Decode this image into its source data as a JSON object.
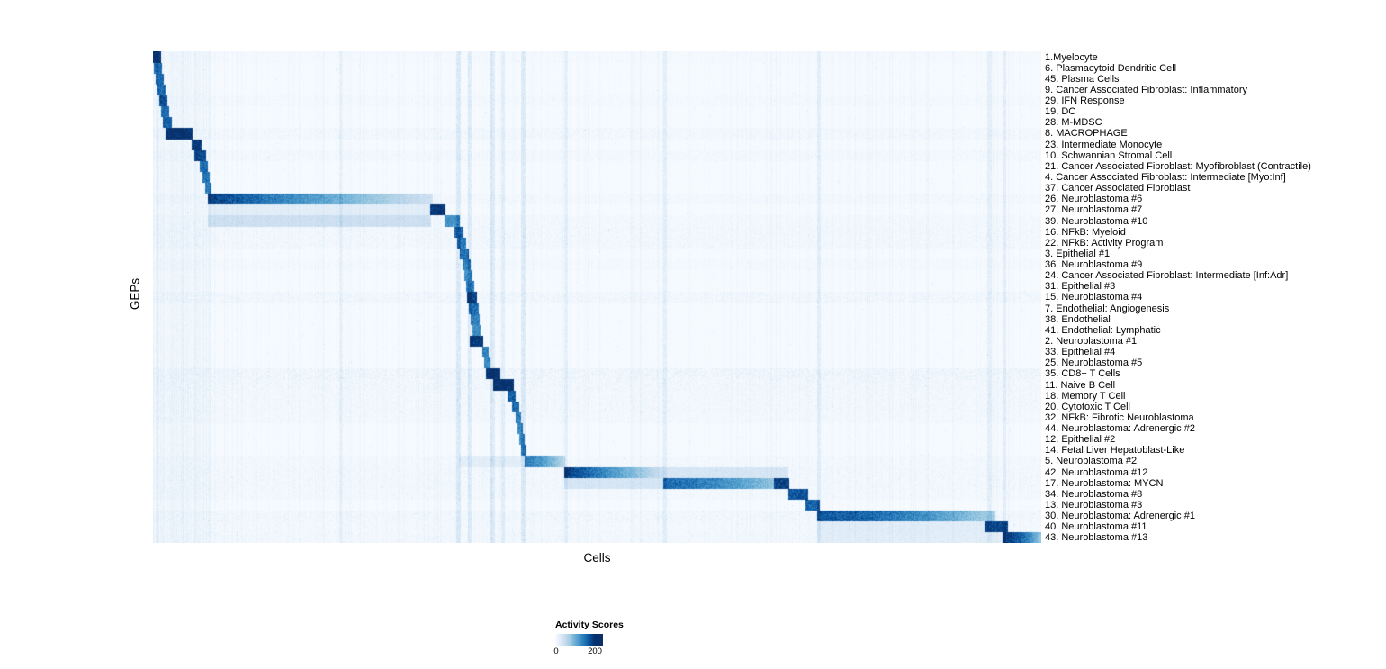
{
  "chart_data": {
    "type": "heatmap",
    "xlabel": "Cells",
    "ylabel": "GEPs",
    "legend": {
      "title": "Activity Scores",
      "min_label": "0",
      "max_label": "200",
      "min": 0,
      "max": 200
    },
    "colorscale": {
      "name": "Blues",
      "min": 0,
      "max": 200,
      "stops": [
        [
          0,
          "#f7fbff"
        ],
        [
          25,
          "#deebf7"
        ],
        [
          50,
          "#c6dbef"
        ],
        [
          75,
          "#9ecae1"
        ],
        [
          100,
          "#6baed6"
        ],
        [
          125,
          "#4292c6"
        ],
        [
          150,
          "#2171b5"
        ],
        [
          175,
          "#08519c"
        ],
        [
          200,
          "#08306b"
        ]
      ]
    },
    "column_streaks": [
      {
        "x": 0.21,
        "w": 0.003,
        "v": 12
      },
      {
        "x": 0.342,
        "w": 0.004,
        "v": 24
      },
      {
        "x": 0.355,
        "w": 0.003,
        "v": 20
      },
      {
        "x": 0.38,
        "w": 0.004,
        "v": 22
      },
      {
        "x": 0.393,
        "w": 0.003,
        "v": 18
      },
      {
        "x": 0.415,
        "w": 0.004,
        "v": 20
      },
      {
        "x": 0.464,
        "w": 0.003,
        "v": 16
      },
      {
        "x": 0.575,
        "w": 0.003,
        "v": 16
      },
      {
        "x": 0.748,
        "w": 0.003,
        "v": 18
      },
      {
        "x": 0.94,
        "w": 0.004,
        "v": 16
      },
      {
        "x": 0.957,
        "w": 0.003,
        "v": 16
      }
    ],
    "rows": [
      {
        "label": "1.Myelocyte",
        "block": [
          0.0,
          0.009
        ],
        "peak": 200,
        "fade": "flat",
        "tint": 2
      },
      {
        "label": "6. Plasmacytoid Dendritic Cell",
        "block": [
          0.002,
          0.01
        ],
        "peak": 150,
        "fade": "flat"
      },
      {
        "label": "45. Plasma Cells",
        "block": [
          0.004,
          0.012
        ],
        "peak": 150,
        "fade": "flat"
      },
      {
        "label": "9. Cancer Associated Fibroblast: Inflammatory",
        "block": [
          0.006,
          0.014
        ],
        "peak": 150,
        "fade": "flat"
      },
      {
        "label": "29. IFN Response",
        "block": [
          0.008,
          0.016
        ],
        "peak": 170,
        "fade": "flat",
        "tint": 3
      },
      {
        "label": "19. DC",
        "block": [
          0.01,
          0.018
        ],
        "peak": 150,
        "fade": "flat"
      },
      {
        "label": "28. M-MDSC",
        "block": [
          0.012,
          0.021
        ],
        "peak": 160,
        "fade": "flat"
      },
      {
        "label": "8. MACROPHAGE",
        "block": [
          0.015,
          0.044
        ],
        "peak": 200,
        "fade": "flat",
        "tint": 5
      },
      {
        "label": "23. Intermediate Monocyte",
        "block": [
          0.044,
          0.054
        ],
        "peak": 190,
        "fade": "flat"
      },
      {
        "label": "10. Schwannian Stromal Cell",
        "block": [
          0.047,
          0.059
        ],
        "peak": 175,
        "fade": "flat",
        "tint": 4
      },
      {
        "label": "21. Cancer Associated Fibroblast: Myofibroblast (Contractile)",
        "block": [
          0.053,
          0.061
        ],
        "peak": 150,
        "fade": "flat"
      },
      {
        "label": "4. Cancer Associated Fibroblast: Intermediate [Myo:Inf]",
        "block": [
          0.056,
          0.063
        ],
        "peak": 140,
        "fade": "flat"
      },
      {
        "label": "37. Cancer Associated Fibroblast",
        "block": [
          0.059,
          0.065
        ],
        "peak": 135,
        "fade": "flat"
      },
      {
        "label": "26. Neuroblastoma #6",
        "block": [
          0.062,
          0.315
        ],
        "peak": 190,
        "fade": "right",
        "tint": 4
      },
      {
        "label": "27. Neuroblastoma #7",
        "block": [
          0.313,
          0.329
        ],
        "peak": 200,
        "fade": "flat",
        "echoes": [
          [
            0.062,
            0.313,
            20
          ]
        ]
      },
      {
        "label": "39. Neuroblastoma #10",
        "block": [
          0.329,
          0.345
        ],
        "peak": 120,
        "fade": "flat",
        "echoes": [
          [
            0.062,
            0.313,
            38
          ]
        ],
        "tint": 4
      },
      {
        "label": "16. NFkB: Myeloid",
        "block": [
          0.34,
          0.349
        ],
        "peak": 150,
        "fade": "flat",
        "tint": 5
      },
      {
        "label": "22. NFkB: Activity Program",
        "block": [
          0.343,
          0.352
        ],
        "peak": 140,
        "fade": "flat",
        "tint": 5
      },
      {
        "label": "3. Epithelial #1",
        "block": [
          0.346,
          0.355
        ],
        "peak": 150,
        "fade": "flat"
      },
      {
        "label": "36. Neuroblastoma #9",
        "block": [
          0.349,
          0.357
        ],
        "peak": 135,
        "fade": "flat",
        "tint": 3
      },
      {
        "label": "24. Cancer Associated Fibroblast: Intermediate [Inf:Adr]",
        "block": [
          0.351,
          0.359
        ],
        "peak": 125,
        "fade": "flat"
      },
      {
        "label": "31. Epithelial #3",
        "block": [
          0.353,
          0.361
        ],
        "peak": 140,
        "fade": "flat"
      },
      {
        "label": "15. Neuroblastoma #4",
        "block": [
          0.354,
          0.364
        ],
        "peak": 185,
        "fade": "flat",
        "tint": 6
      },
      {
        "label": "7. Endothelial: Angiogenesis",
        "block": [
          0.356,
          0.366
        ],
        "peak": 150,
        "fade": "flat"
      },
      {
        "label": "38. Endothelial",
        "block": [
          0.358,
          0.367
        ],
        "peak": 140,
        "fade": "flat"
      },
      {
        "label": "41. Endothelial: Lymphatic",
        "block": [
          0.36,
          0.368
        ],
        "peak": 130,
        "fade": "flat"
      },
      {
        "label": "2. Neuroblastoma #1",
        "block": [
          0.357,
          0.371
        ],
        "peak": 200,
        "fade": "flat"
      },
      {
        "label": "33. Epithelial #4",
        "block": [
          0.371,
          0.377
        ],
        "peak": 140,
        "fade": "flat"
      },
      {
        "label": "25. Neuroblastoma #5",
        "block": [
          0.373,
          0.379
        ],
        "peak": 130,
        "fade": "flat"
      },
      {
        "label": "35. CD8+ T Cells",
        "block": [
          0.375,
          0.391
        ],
        "peak": 200,
        "fade": "flat",
        "tint": 8
      },
      {
        "label": "11. Naive B Cell",
        "block": [
          0.383,
          0.406
        ],
        "peak": 200,
        "fade": "flat",
        "tint": 6
      },
      {
        "label": "18. Memory T Cell",
        "block": [
          0.4,
          0.408
        ],
        "peak": 160,
        "fade": "flat",
        "tint": 5
      },
      {
        "label": "20. Cytotoxic T Cell",
        "block": [
          0.405,
          0.412
        ],
        "peak": 150,
        "fade": "flat",
        "tint": 5
      },
      {
        "label": "32. NFkB: Fibrotic Neuroblastoma",
        "block": [
          0.409,
          0.414
        ],
        "peak": 140,
        "fade": "flat",
        "tint": 4
      },
      {
        "label": "44. Neuroblastoma: Adrenergic #2",
        "block": [
          0.411,
          0.416
        ],
        "peak": 130,
        "fade": "flat"
      },
      {
        "label": "12. Epithelial #2",
        "block": [
          0.413,
          0.418
        ],
        "peak": 125,
        "fade": "flat"
      },
      {
        "label": "14. Fetal Liver Hepatoblast-Like",
        "block": [
          0.415,
          0.42
        ],
        "peak": 130,
        "fade": "flat"
      },
      {
        "label": "5. Neuroblastoma #2",
        "block": [
          0.419,
          0.464
        ],
        "peak": 135,
        "fade": "right_soft",
        "echoes": [
          [
            0.345,
            0.419,
            16
          ]
        ],
        "tint": 4
      },
      {
        "label": "42. Neuroblastoma #12",
        "block": [
          0.464,
          0.575
        ],
        "peak": 200,
        "fade": "right",
        "echoes": [
          [
            0.575,
            0.715,
            28
          ]
        ],
        "tint": 5
      },
      {
        "label": "17. Neuroblastoma: MYCN",
        "block": [
          0.575,
          0.715
        ],
        "peak": 150,
        "fade": "right_soft",
        "echoes": [
          [
            0.7,
            0.716,
            185
          ],
          [
            0.464,
            0.575,
            28
          ]
        ],
        "tint": 5
      },
      {
        "label": "34. Neuroblastoma #8",
        "block": [
          0.716,
          0.737
        ],
        "peak": 170,
        "fade": "flat",
        "tint": 4
      },
      {
        "label": "13. Neuroblastoma #3",
        "block": [
          0.735,
          0.75
        ],
        "peak": 160,
        "fade": "flat"
      },
      {
        "label": "30. Neuroblastoma: Adrenergic #1",
        "block": [
          0.748,
          0.948
        ],
        "peak": 165,
        "fade": "right_soft",
        "tint": 6
      },
      {
        "label": "40. Neuroblastoma #11",
        "block": [
          0.937,
          0.962
        ],
        "peak": 180,
        "fade": "flat",
        "echoes": [
          [
            0.748,
            0.937,
            18
          ]
        ],
        "tint": 4
      },
      {
        "label": "43. Neuroblastoma #13",
        "block": [
          0.957,
          1.0
        ],
        "peak": 195,
        "fade": "right_soft",
        "echoes": [
          [
            0.748,
            0.957,
            16
          ]
        ],
        "tint": 5
      }
    ]
  }
}
